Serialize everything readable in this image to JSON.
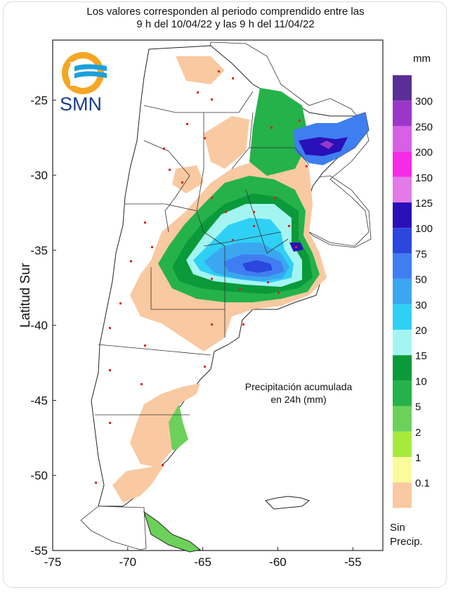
{
  "title": {
    "line1": "Los valores corresponden al periodo comprendido entre las",
    "line2": "9 h del 10/04/22 y las 9 h del 11/04/22"
  },
  "logo": {
    "text": "SMN",
    "colors": {
      "sun": "#f5a623",
      "waves": "#1aa0dc"
    }
  },
  "axes": {
    "ylabel": "Latitud Sur",
    "lon_range": [
      -75,
      -53
    ],
    "lat_range": [
      -55,
      -21
    ],
    "xticks": [
      "-75",
      "-70",
      "-65",
      "-60",
      "-55"
    ],
    "yticks": [
      "-25",
      "-30",
      "-35",
      "-40",
      "-45",
      "-50",
      "-55"
    ]
  },
  "annotation": {
    "line1": "Precipitación acumulada",
    "line2": "en 24h (mm)"
  },
  "legend": {
    "unit": "mm",
    "no_precip_line1": "Sin",
    "no_precip_line2": "Precip.",
    "classes": [
      {
        "label": "300",
        "color": "#5a2e96"
      },
      {
        "label": "250",
        "color": "#9b37c8"
      },
      {
        "label": "200",
        "color": "#d760e6"
      },
      {
        "label": "150",
        "color": "#f52be6"
      },
      {
        "label": "125",
        "color": "#e27ae8"
      },
      {
        "label": "100",
        "color": "#2a10b8"
      },
      {
        "label": "75",
        "color": "#2b47de"
      },
      {
        "label": "50",
        "color": "#3f7ef0"
      },
      {
        "label": "30",
        "color": "#3aa7f0"
      },
      {
        "label": "20",
        "color": "#2fd0f5"
      },
      {
        "label": "15",
        "color": "#a4f5f2"
      },
      {
        "label": "10",
        "color": "#0a9a3a"
      },
      {
        "label": "5",
        "color": "#25b24a"
      },
      {
        "label": "2",
        "color": "#6bd15a"
      },
      {
        "label": "1",
        "color": "#a8ea3c"
      },
      {
        "label": "0.1",
        "color": "#fbfb9a"
      },
      {
        "label": "",
        "color": "#f9c9a1"
      }
    ]
  }
}
